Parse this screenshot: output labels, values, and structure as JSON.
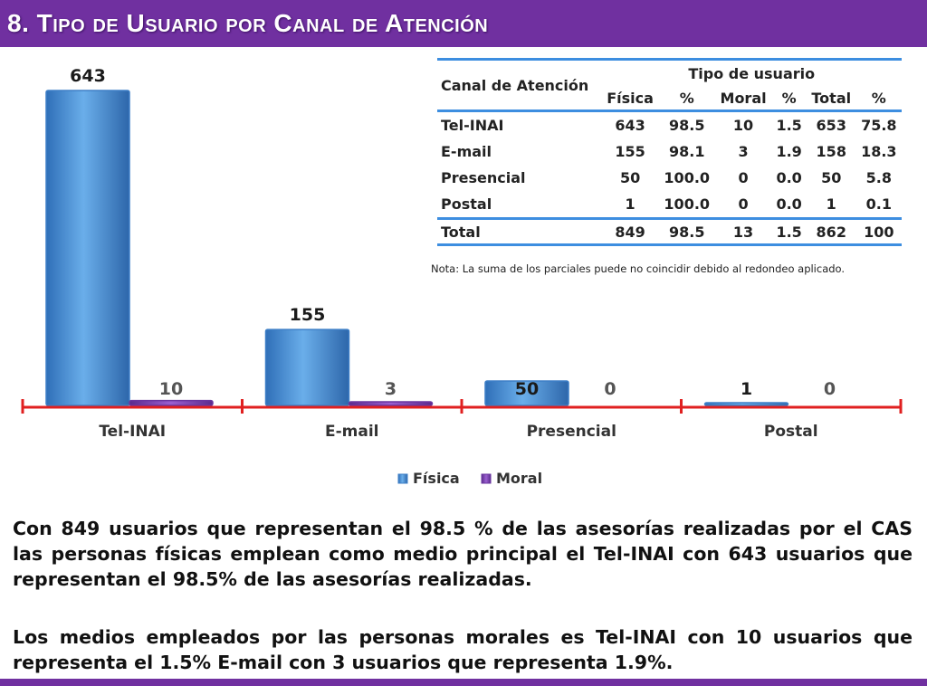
{
  "page": {
    "title": "8. Tipo de Usuario por Canal de Atención"
  },
  "colors": {
    "purple": "#7030a0",
    "bar_fisica": "#4a90d9",
    "bar_moral": "#7b3fb0",
    "axis": "#e02020",
    "table_rule": "#3d8ee0"
  },
  "table": {
    "channel_header": "Canal de Atención",
    "group_header": "Tipo de usuario",
    "subheaders": [
      "Física",
      "%",
      "Moral",
      "%",
      "Total",
      "%"
    ],
    "rows": [
      {
        "label": "Tel-INAI",
        "cells": [
          "643",
          "98.5",
          "10",
          "1.5",
          "653",
          "75.8"
        ]
      },
      {
        "label": "E-mail",
        "cells": [
          "155",
          "98.1",
          "3",
          "1.9",
          "158",
          "18.3"
        ]
      },
      {
        "label": "Presencial",
        "cells": [
          "50",
          "100.0",
          "0",
          "0.0",
          "50",
          "5.8"
        ]
      },
      {
        "label": "Postal",
        "cells": [
          "1",
          "100.0",
          "0",
          "0.0",
          "1",
          "0.1"
        ]
      }
    ],
    "total": {
      "label": "Total",
      "cells": [
        "849",
        "98.5",
        "13",
        "1.5",
        "862",
        "100"
      ]
    }
  },
  "note": "Nota: La suma de los parciales puede no coincidir debido al redondeo aplicado.",
  "paragraphs": [
    "Con 849 usuarios que representan el 98.5 % de las asesorías realizadas por el CAS las personas físicas emplean como medio principal el Tel-INAI con 643 usuarios que representan el 98.5% de las asesorías realizadas.",
    "Los medios empleados por las personas morales es Tel-INAI con 10 usuarios que representa el 1.5%  E-mail con 3 usuarios que representa 1.9%."
  ],
  "chart_data": {
    "type": "bar",
    "title": "",
    "categories": [
      "Tel-INAI",
      "E-mail",
      "Presencial",
      "Postal"
    ],
    "series": [
      {
        "name": "Física",
        "values": [
          643,
          155,
          50,
          1
        ],
        "labels": [
          "643",
          "155",
          "50",
          "1"
        ]
      },
      {
        "name": "Moral",
        "values": [
          10,
          3,
          0,
          0
        ],
        "labels": [
          "10",
          "3",
          "0",
          "0"
        ]
      }
    ],
    "xlabel": "",
    "ylabel": "",
    "ylim": [
      0,
      643
    ],
    "legend_position": "bottom",
    "grid": false
  }
}
